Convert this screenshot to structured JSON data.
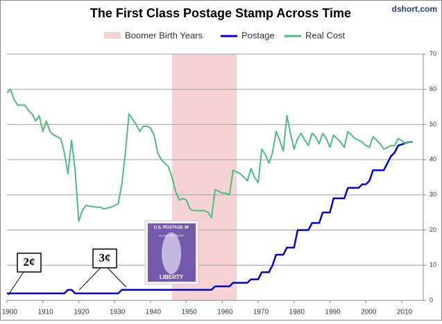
{
  "chart_data": {
    "type": "line",
    "title": "The First Class Postage Stamp Across Time",
    "source": "dshort.com",
    "xlim": [
      1900,
      2016
    ],
    "xticks": [
      1900,
      1910,
      1920,
      1930,
      1940,
      1950,
      1960,
      1970,
      1980,
      1990,
      2000,
      2010
    ],
    "ylim": [
      0,
      70
    ],
    "yticks": [
      0,
      10,
      20,
      30,
      40,
      50,
      60,
      70
    ],
    "y_axis_side": "right",
    "grid": true,
    "shaded": {
      "name": "Boomer Birth Years",
      "x": [
        1946,
        1964
      ],
      "color": "#f5d3d5"
    },
    "series": [
      {
        "name": "Postage",
        "color": "#0000dd",
        "x": [
          1900,
          1916,
          1917,
          1918,
          1919,
          1931,
          1932,
          1957,
          1958,
          1962,
          1963,
          1967,
          1968,
          1970,
          1971,
          1973,
          1974,
          1975,
          1977,
          1978,
          1980,
          1981,
          1984,
          1985,
          1987,
          1988,
          1990,
          1991,
          1994,
          1995,
          1998,
          1999,
          2000,
          2001,
          2002,
          2005,
          2006,
          2007,
          2008,
          2009,
          2012,
          2013
        ],
        "values": [
          2,
          2,
          3,
          3,
          2,
          2,
          3,
          3,
          4,
          4,
          5,
          5,
          6,
          6,
          8,
          8,
          10,
          13,
          13,
          15,
          15,
          20,
          20,
          22,
          22,
          25,
          25,
          29,
          29,
          32,
          32,
          33,
          33,
          34,
          37,
          37,
          39,
          41,
          42,
          44,
          45,
          45
        ]
      },
      {
        "name": "Real Cost",
        "color": "#4dbb7f",
        "x": [
          1900,
          1901,
          1902,
          1903,
          1905,
          1906,
          1907,
          1908,
          1909,
          1910,
          1911,
          1912,
          1913,
          1914,
          1915,
          1916,
          1917,
          1918,
          1919,
          1920,
          1921,
          1922,
          1925,
          1926,
          1927,
          1929,
          1931,
          1932,
          1933,
          1934,
          1935,
          1936,
          1937,
          1938,
          1939,
          1940,
          1941,
          1942,
          1943,
          1944,
          1945,
          1946,
          1947,
          1948,
          1949,
          1950,
          1951,
          1952,
          1953,
          1954,
          1955,
          1956,
          1957,
          1958,
          1959,
          1960,
          1961,
          1962,
          1963,
          1964,
          1965,
          1966,
          1967,
          1968,
          1969,
          1970,
          1971,
          1972,
          1973,
          1974,
          1975,
          1976,
          1977,
          1978,
          1979,
          1980,
          1981,
          1982,
          1983,
          1984,
          1985,
          1986,
          1987,
          1988,
          1989,
          1990,
          1991,
          1992,
          1993,
          1994,
          1995,
          1996,
          1997,
          1998,
          1999,
          2000,
          2001,
          2002,
          2003,
          2004,
          2005,
          2006,
          2007,
          2008,
          2009,
          2010,
          2011,
          2012,
          2013
        ],
        "values": [
          59,
          60,
          57,
          55.5,
          55.5,
          54,
          53,
          51,
          52.5,
          48,
          51,
          48,
          47,
          46.5,
          46,
          42,
          36,
          45.5,
          37,
          22.5,
          25.5,
          27,
          26.5,
          26.5,
          26,
          26.5,
          27.5,
          33,
          42,
          53,
          51.5,
          50,
          48,
          49.5,
          49.5,
          49,
          47,
          42,
          40,
          39,
          38,
          35,
          31,
          28.5,
          29,
          28.5,
          26,
          25.5,
          25.5,
          25.5,
          25.5,
          25,
          23.5,
          31.5,
          31,
          30.5,
          30.5,
          30,
          37,
          36.5,
          36,
          35,
          34,
          37.5,
          35,
          33.5,
          43,
          41.5,
          39,
          42,
          48,
          45.5,
          42.5,
          52.5,
          47.5,
          43,
          46,
          47.5,
          45.5,
          44,
          47.5,
          46.5,
          44.5,
          47.5,
          46,
          43.5,
          47,
          46,
          45,
          43.5,
          48,
          47,
          46,
          45.5,
          45,
          44,
          43.5,
          46.5,
          45.5,
          44.5,
          43,
          43.5,
          44,
          44,
          46,
          45.5,
          44.5,
          45,
          45
        ]
      }
    ],
    "annotations": [
      "2¢",
      "3¢"
    ],
    "stamp": {
      "top": "U.S. POSTAGE 3¢",
      "motto": "IN GOD WE TRUST",
      "bottom": "LIBERTY"
    }
  }
}
